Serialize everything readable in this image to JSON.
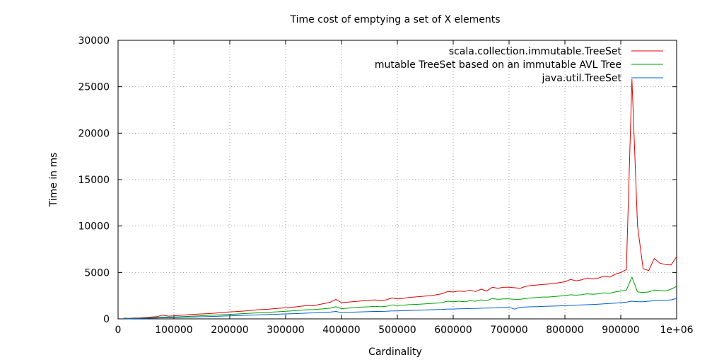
{
  "chart_data": {
    "type": "line",
    "title": "Time cost of emptying a set of X elements",
    "xlabel": "Cardinality",
    "ylabel": "Time in ms",
    "xlim": [
      0,
      1000000
    ],
    "ylim": [
      0,
      30000
    ],
    "xticks": [
      0,
      100000,
      200000,
      300000,
      400000,
      500000,
      600000,
      700000,
      800000,
      900000,
      1000000
    ],
    "xtick_labels": [
      "0",
      "100000",
      "200000",
      "300000",
      "400000",
      "500000",
      "600000",
      "700000",
      "800000",
      "900000",
      "1e+06"
    ],
    "yticks": [
      0,
      5000,
      10000,
      15000,
      20000,
      25000,
      30000
    ],
    "ytick_labels": [
      "0",
      "5000",
      "10000",
      "15000",
      "20000",
      "25000",
      "30000"
    ],
    "grid": true,
    "legend_position": "top-right",
    "x": [
      10000,
      20000,
      30000,
      40000,
      50000,
      60000,
      70000,
      80000,
      90000,
      100000,
      110000,
      120000,
      130000,
      140000,
      150000,
      160000,
      170000,
      180000,
      190000,
      200000,
      210000,
      220000,
      230000,
      240000,
      250000,
      260000,
      270000,
      280000,
      290000,
      300000,
      310000,
      320000,
      330000,
      340000,
      350000,
      360000,
      370000,
      380000,
      390000,
      400000,
      410000,
      420000,
      430000,
      440000,
      450000,
      460000,
      470000,
      480000,
      490000,
      500000,
      510000,
      520000,
      530000,
      540000,
      550000,
      560000,
      570000,
      580000,
      590000,
      600000,
      610000,
      620000,
      630000,
      640000,
      650000,
      660000,
      670000,
      680000,
      690000,
      700000,
      710000,
      720000,
      730000,
      740000,
      750000,
      760000,
      770000,
      780000,
      790000,
      800000,
      810000,
      820000,
      830000,
      840000,
      850000,
      860000,
      870000,
      880000,
      890000,
      900000,
      910000,
      920000,
      930000,
      940000,
      950000,
      960000,
      970000,
      980000,
      990000,
      1000000
    ],
    "series": [
      {
        "name": "scala.collection.immutable.TreeSet",
        "color": "#e00000",
        "values": [
          80,
          60,
          90,
          110,
          150,
          200,
          250,
          400,
          300,
          320,
          380,
          420,
          480,
          500,
          530,
          560,
          600,
          650,
          700,
          750,
          780,
          820,
          870,
          920,
          980,
          1020,
          1050,
          1100,
          1150,
          1200,
          1250,
          1300,
          1380,
          1450,
          1400,
          1550,
          1650,
          1800,
          2100,
          1750,
          1800,
          1850,
          1900,
          1950,
          2000,
          2050,
          1950,
          2050,
          2250,
          2150,
          2200,
          2300,
          2350,
          2400,
          2450,
          2500,
          2600,
          2700,
          2950,
          2900,
          3000,
          2950,
          3100,
          2950,
          3200,
          3000,
          3400,
          3300,
          3400,
          3400,
          3350,
          3300,
          3500,
          3600,
          3650,
          3700,
          3750,
          3800,
          3900,
          4000,
          4250,
          4100,
          4200,
          4400,
          4300,
          4400,
          4600,
          4500,
          4800,
          5000,
          5300,
          25800,
          10000,
          5400,
          5200,
          6500,
          6000,
          5850,
          5800,
          6700
        ]
      },
      {
        "name": "mutable TreeSet based on an immutable AVL Tree",
        "color": "#00a000",
        "values": [
          50,
          40,
          60,
          70,
          90,
          120,
          150,
          200,
          180,
          200,
          230,
          260,
          290,
          310,
          340,
          370,
          400,
          430,
          460,
          490,
          520,
          550,
          580,
          620,
          650,
          680,
          710,
          740,
          780,
          820,
          860,
          900,
          950,
          990,
          1000,
          1050,
          1100,
          1150,
          1300,
          1100,
          1150,
          1200,
          1250,
          1280,
          1300,
          1350,
          1300,
          1350,
          1500,
          1450,
          1480,
          1520,
          1550,
          1580,
          1620,
          1650,
          1700,
          1750,
          1900,
          1850,
          1900,
          1850,
          1950,
          1900,
          2050,
          1950,
          2200,
          2100,
          2150,
          2150,
          2100,
          2100,
          2200,
          2250,
          2300,
          2350,
          2350,
          2400,
          2450,
          2500,
          2600,
          2550,
          2600,
          2700,
          2650,
          2700,
          2800,
          2750,
          2900,
          3000,
          3100,
          4500,
          2900,
          2850,
          2900,
          3100,
          3050,
          3000,
          3200,
          3500
        ]
      },
      {
        "name": "java.util.TreeSet",
        "color": "#0060d0",
        "values": [
          30,
          20,
          40,
          50,
          60,
          80,
          100,
          130,
          120,
          140,
          160,
          180,
          200,
          215,
          230,
          250,
          270,
          290,
          310,
          330,
          350,
          370,
          390,
          410,
          430,
          450,
          470,
          490,
          510,
          530,
          550,
          570,
          600,
          630,
          650,
          680,
          700,
          730,
          800,
          680,
          700,
          720,
          740,
          760,
          780,
          800,
          800,
          820,
          860,
          860,
          880,
          900,
          920,
          940,
          960,
          980,
          1000,
          1020,
          1060,
          1060,
          1080,
          1100,
          1110,
          1120,
          1150,
          1160,
          1180,
          1200,
          1220,
          1240,
          1050,
          1260,
          1280,
          1300,
          1320,
          1340,
          1360,
          1380,
          1400,
          1420,
          1450,
          1480,
          1500,
          1520,
          1550,
          1580,
          1620,
          1650,
          1700,
          1750,
          1800,
          1900,
          1850,
          1850,
          1900,
          1950,
          2000,
          2000,
          2050,
          2200
        ]
      }
    ]
  }
}
